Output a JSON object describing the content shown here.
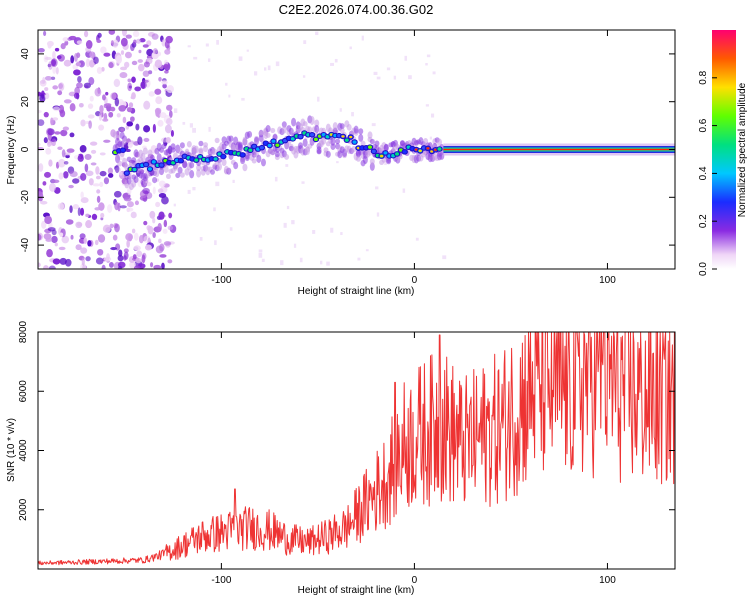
{
  "title": "C2E2.2026.074.00.36.G02",
  "chart_data": [
    {
      "type": "heatmap",
      "xlabel": "Height of straight line (km)",
      "ylabel": "Frequency (Hz)",
      "xlim": [
        -195,
        135
      ],
      "ylim": [
        -50,
        50
      ],
      "x_ticks": [
        -100,
        0,
        100
      ],
      "y_ticks": [
        -40,
        -20,
        0,
        20,
        40
      ],
      "colorbar": {
        "label": "Normalized spectral amplitude",
        "range": [
          0,
          1
        ],
        "ticks": [
          0.0,
          0.2,
          0.4,
          0.6,
          0.8
        ]
      },
      "ridge": [
        {
          "x": -150,
          "y": -10
        },
        {
          "x": -130,
          "y": -5
        },
        {
          "x": -100,
          "y": -3
        },
        {
          "x": -80,
          "y": 1
        },
        {
          "x": -65,
          "y": 4
        },
        {
          "x": -55,
          "y": 6
        },
        {
          "x": -45,
          "y": 5
        },
        {
          "x": -33,
          "y": 4
        },
        {
          "x": -25,
          "y": 0
        },
        {
          "x": -15,
          "y": -2
        },
        {
          "x": 0,
          "y": 0
        },
        {
          "x": 10,
          "y": 0
        },
        {
          "x": 15,
          "y": 0
        },
        {
          "x": 135,
          "y": 0
        }
      ]
    },
    {
      "type": "line",
      "xlabel": "Height of straight line (km)",
      "ylabel": "SNR (10 * v/v)",
      "xlim": [
        -195,
        135
      ],
      "ylim": [
        0,
        8000
      ],
      "x_ticks": [
        -100,
        0,
        100
      ],
      "y_ticks": [
        2000,
        4000,
        6000,
        8000
      ],
      "series": [
        {
          "name": "SNR",
          "color": "#ee3333",
          "x": [
            -195,
            -180,
            -160,
            -140,
            -130,
            -120,
            -110,
            -95,
            -85,
            -75,
            -65,
            -55,
            -45,
            -35,
            -25,
            -15,
            -5,
            5,
            15,
            25,
            35,
            45,
            55,
            65,
            75,
            85,
            95,
            105,
            115,
            125,
            135
          ],
          "y": [
            200,
            220,
            260,
            300,
            500,
            800,
            1100,
            1300,
            1400,
            1300,
            1000,
            900,
            1100,
            1400,
            2200,
            3000,
            4200,
            4600,
            4900,
            4200,
            4500,
            4800,
            5600,
            6400,
            6100,
            6300,
            6900,
            6200,
            5900,
            5800,
            6000
          ]
        }
      ],
      "peaks": [
        {
          "x": -93,
          "y": 2700
        },
        {
          "x": -10,
          "y": 6300
        },
        {
          "x": 13,
          "y": 7900
        },
        {
          "x": 98,
          "y": 8000
        }
      ]
    }
  ]
}
